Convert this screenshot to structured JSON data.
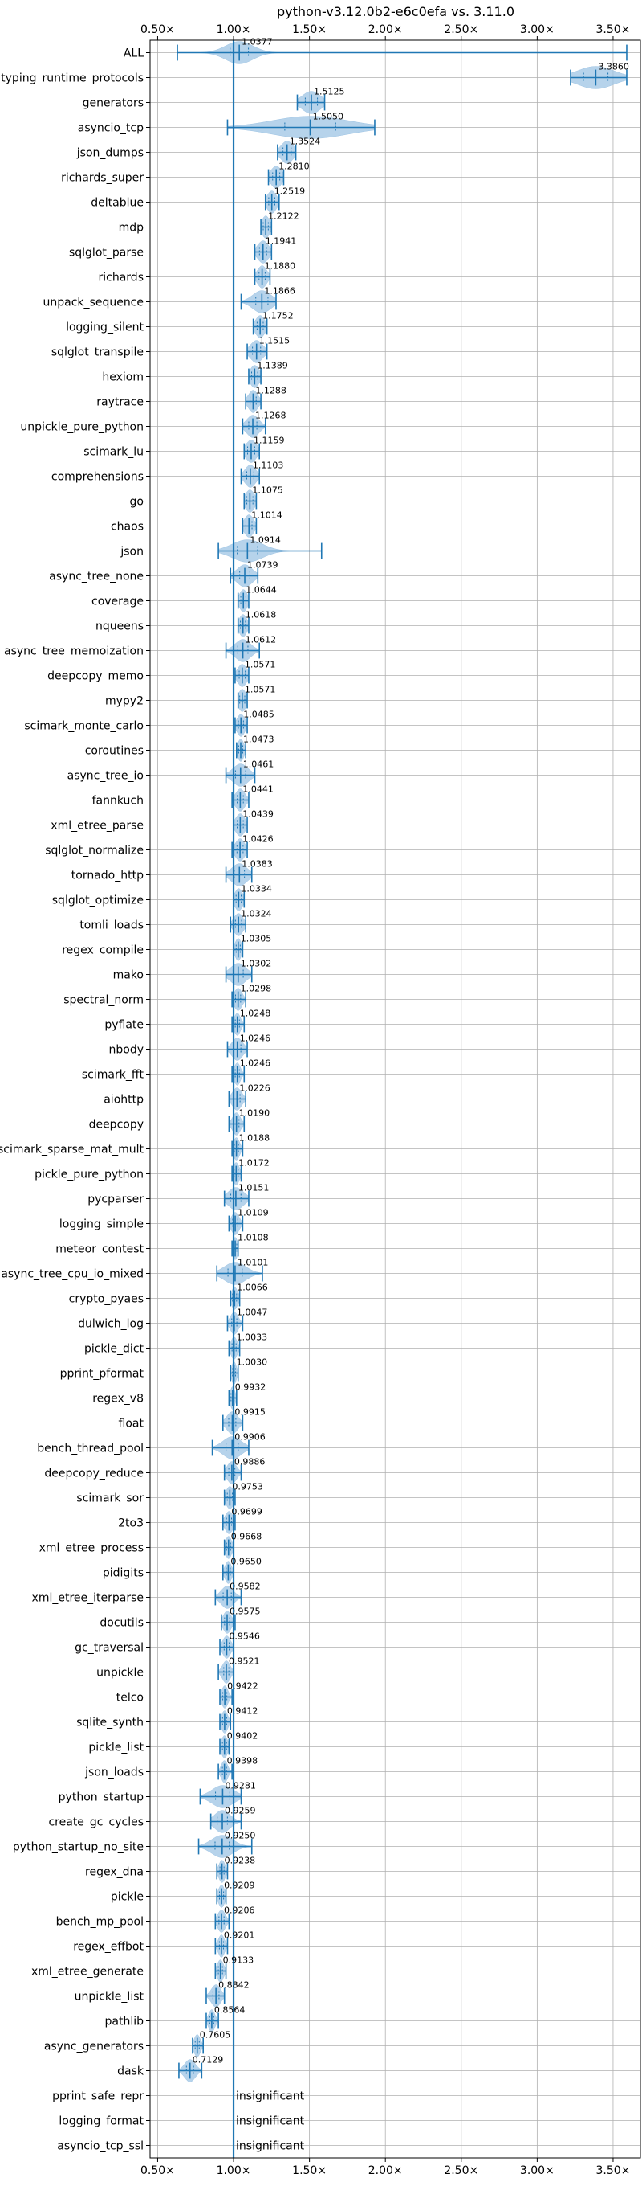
{
  "chart_data": {
    "type": "violin",
    "title": "python-v3.12.0b2-e6c0efa vs. 3.11.0",
    "xlabel": "",
    "ylabel": "",
    "xlim": [
      0.45,
      3.68
    ],
    "xticks": [
      0.5,
      1.0,
      1.5,
      2.0,
      2.5,
      3.0,
      3.5
    ],
    "xtick_labels": [
      "0.50×",
      "1.00×",
      "1.50×",
      "2.00×",
      "2.50×",
      "3.00×",
      "3.50×"
    ],
    "grid": true,
    "reference_line": 1.0,
    "colors": {
      "violin": "#9ec4e4",
      "line": "#1f77b4",
      "grid": "#b0b0b0"
    },
    "benchmarks": [
      {
        "name": "ALL",
        "label": "1.0377",
        "min": 0.63,
        "max": 3.59,
        "spread": 0.09
      },
      {
        "name": "typing_runtime_protocols",
        "label": "3.3860",
        "min": 3.22,
        "max": 3.59,
        "spread": 0.12
      },
      {
        "name": "generators",
        "label": "1.5125",
        "min": 1.42,
        "max": 1.6,
        "spread": 0.06
      },
      {
        "name": "asyncio_tcp",
        "label": "1.5050",
        "min": 0.96,
        "max": 1.93,
        "spread": 0.25
      },
      {
        "name": "json_dumps",
        "label": "1.3524",
        "min": 1.29,
        "max": 1.41,
        "spread": 0.04
      },
      {
        "name": "richards_super",
        "label": "1.2810",
        "min": 1.23,
        "max": 1.33,
        "spread": 0.035
      },
      {
        "name": "deltablue",
        "label": "1.2519",
        "min": 1.21,
        "max": 1.3,
        "spread": 0.03
      },
      {
        "name": "mdp",
        "label": "1.2122",
        "min": 1.18,
        "max": 1.25,
        "spread": 0.025
      },
      {
        "name": "sqlglot_parse",
        "label": "1.1941",
        "min": 1.14,
        "max": 1.25,
        "spread": 0.035
      },
      {
        "name": "richards",
        "label": "1.1880",
        "min": 1.14,
        "max": 1.24,
        "spread": 0.03
      },
      {
        "name": "unpack_sequence",
        "label": "1.1866",
        "min": 1.05,
        "max": 1.28,
        "spread": 0.06
      },
      {
        "name": "logging_silent",
        "label": "1.1752",
        "min": 1.13,
        "max": 1.22,
        "spread": 0.03
      },
      {
        "name": "sqlglot_transpile",
        "label": "1.1515",
        "min": 1.09,
        "max": 1.22,
        "spread": 0.04
      },
      {
        "name": "hexiom",
        "label": "1.1389",
        "min": 1.1,
        "max": 1.18,
        "spread": 0.03
      },
      {
        "name": "raytrace",
        "label": "1.1288",
        "min": 1.08,
        "max": 1.18,
        "spread": 0.03
      },
      {
        "name": "unpickle_pure_python",
        "label": "1.1268",
        "min": 1.06,
        "max": 1.21,
        "spread": 0.04
      },
      {
        "name": "scimark_lu",
        "label": "1.1159",
        "min": 1.07,
        "max": 1.17,
        "spread": 0.035
      },
      {
        "name": "comprehensions",
        "label": "1.1103",
        "min": 1.05,
        "max": 1.17,
        "spread": 0.035
      },
      {
        "name": "go",
        "label": "1.1075",
        "min": 1.07,
        "max": 1.15,
        "spread": 0.03
      },
      {
        "name": "chaos",
        "label": "1.1014",
        "min": 1.06,
        "max": 1.15,
        "spread": 0.03
      },
      {
        "name": "json",
        "label": "1.0914",
        "min": 0.9,
        "max": 1.58,
        "spread": 0.1
      },
      {
        "name": "async_tree_none",
        "label": "1.0739",
        "min": 0.98,
        "max": 1.16,
        "spread": 0.05
      },
      {
        "name": "coverage",
        "label": "1.0644",
        "min": 1.03,
        "max": 1.1,
        "spread": 0.025
      },
      {
        "name": "nqueens",
        "label": "1.0618",
        "min": 1.03,
        "max": 1.1,
        "spread": 0.025
      },
      {
        "name": "async_tree_memoization",
        "label": "1.0612",
        "min": 0.95,
        "max": 1.17,
        "spread": 0.05
      },
      {
        "name": "deepcopy_memo",
        "label": "1.0571",
        "min": 1.01,
        "max": 1.1,
        "spread": 0.03
      },
      {
        "name": "mypy2",
        "label": "1.0571",
        "min": 1.03,
        "max": 1.09,
        "spread": 0.025
      },
      {
        "name": "scimark_monte_carlo",
        "label": "1.0485",
        "min": 1.01,
        "max": 1.09,
        "spread": 0.025
      },
      {
        "name": "coroutines",
        "label": "1.0473",
        "min": 1.02,
        "max": 1.08,
        "spread": 0.02
      },
      {
        "name": "async_tree_io",
        "label": "1.0461",
        "min": 0.95,
        "max": 1.14,
        "spread": 0.05
      },
      {
        "name": "fannkuch",
        "label": "1.0441",
        "min": 0.99,
        "max": 1.1,
        "spread": 0.03
      },
      {
        "name": "xml_etree_parse",
        "label": "1.0439",
        "min": 1.0,
        "max": 1.09,
        "spread": 0.03
      },
      {
        "name": "sqlglot_normalize",
        "label": "1.0426",
        "min": 0.99,
        "max": 1.09,
        "spread": 0.03
      },
      {
        "name": "tornado_http",
        "label": "1.0383",
        "min": 0.95,
        "max": 1.12,
        "spread": 0.05
      },
      {
        "name": "sqlglot_optimize",
        "label": "1.0334",
        "min": 1.0,
        "max": 1.07,
        "spread": 0.025
      },
      {
        "name": "tomli_loads",
        "label": "1.0324",
        "min": 0.98,
        "max": 1.08,
        "spread": 0.03
      },
      {
        "name": "regex_compile",
        "label": "1.0305",
        "min": 1.0,
        "max": 1.06,
        "spread": 0.02
      },
      {
        "name": "mako",
        "label": "1.0302",
        "min": 0.95,
        "max": 1.12,
        "spread": 0.05
      },
      {
        "name": "spectral_norm",
        "label": "1.0298",
        "min": 0.99,
        "max": 1.08,
        "spread": 0.025
      },
      {
        "name": "pyflate",
        "label": "1.0248",
        "min": 0.99,
        "max": 1.07,
        "spread": 0.02
      },
      {
        "name": "nbody",
        "label": "1.0246",
        "min": 0.96,
        "max": 1.09,
        "spread": 0.035
      },
      {
        "name": "scimark_fft",
        "label": "1.0246",
        "min": 0.99,
        "max": 1.07,
        "spread": 0.02
      },
      {
        "name": "aiohttp",
        "label": "1.0226",
        "min": 0.97,
        "max": 1.08,
        "spread": 0.03
      },
      {
        "name": "deepcopy",
        "label": "1.0190",
        "min": 0.97,
        "max": 1.07,
        "spread": 0.025
      },
      {
        "name": "scimark_sparse_mat_mult",
        "label": "1.0188",
        "min": 0.99,
        "max": 1.06,
        "spread": 0.02
      },
      {
        "name": "pickle_pure_python",
        "label": "1.0172",
        "min": 0.99,
        "max": 1.05,
        "spread": 0.02
      },
      {
        "name": "pycparser",
        "label": "1.0151",
        "min": 0.94,
        "max": 1.1,
        "spread": 0.05
      },
      {
        "name": "logging_simple",
        "label": "1.0109",
        "min": 0.97,
        "max": 1.06,
        "spread": 0.025
      },
      {
        "name": "meteor_contest",
        "label": "1.0108",
        "min": 0.99,
        "max": 1.03,
        "spread": 0.015
      },
      {
        "name": "async_tree_cpu_io_mixed",
        "label": "1.0101",
        "min": 0.89,
        "max": 1.19,
        "spread": 0.07
      },
      {
        "name": "crypto_pyaes",
        "label": "1.0066",
        "min": 0.98,
        "max": 1.04,
        "spread": 0.02
      },
      {
        "name": "dulwich_log",
        "label": "1.0047",
        "min": 0.96,
        "max": 1.06,
        "spread": 0.025
      },
      {
        "name": "pickle_dict",
        "label": "1.0033",
        "min": 0.97,
        "max": 1.04,
        "spread": 0.02
      },
      {
        "name": "pprint_pformat",
        "label": "1.0030",
        "min": 0.98,
        "max": 1.03,
        "spread": 0.015
      },
      {
        "name": "regex_v8",
        "label": "0.9932",
        "min": 0.97,
        "max": 1.02,
        "spread": 0.015
      },
      {
        "name": "float",
        "label": "0.9915",
        "min": 0.93,
        "max": 1.06,
        "spread": 0.035
      },
      {
        "name": "bench_thread_pool",
        "label": "0.9906",
        "min": 0.86,
        "max": 1.1,
        "spread": 0.06
      },
      {
        "name": "deepcopy_reduce",
        "label": "0.9886",
        "min": 0.94,
        "max": 1.05,
        "spread": 0.03
      },
      {
        "name": "scimark_sor",
        "label": "0.9753",
        "min": 0.94,
        "max": 1.01,
        "spread": 0.025
      },
      {
        "name": "2to3",
        "label": "0.9699",
        "min": 0.93,
        "max": 1.01,
        "spread": 0.025
      },
      {
        "name": "xml_etree_process",
        "label": "0.9668",
        "min": 0.94,
        "max": 1.0,
        "spread": 0.02
      },
      {
        "name": "pidigits",
        "label": "0.9650",
        "min": 0.93,
        "max": 1.0,
        "spread": 0.02
      },
      {
        "name": "xml_etree_iterparse",
        "label": "0.9582",
        "min": 0.88,
        "max": 1.05,
        "spread": 0.04
      },
      {
        "name": "docutils",
        "label": "0.9575",
        "min": 0.92,
        "max": 1.01,
        "spread": 0.025
      },
      {
        "name": "gc_traversal",
        "label": "0.9546",
        "min": 0.91,
        "max": 1.0,
        "spread": 0.025
      },
      {
        "name": "unpickle",
        "label": "0.9521",
        "min": 0.9,
        "max": 1.0,
        "spread": 0.025
      },
      {
        "name": "telco",
        "label": "0.9422",
        "min": 0.91,
        "max": 0.99,
        "spread": 0.02
      },
      {
        "name": "sqlite_synth",
        "label": "0.9412",
        "min": 0.91,
        "max": 0.98,
        "spread": 0.02
      },
      {
        "name": "pickle_list",
        "label": "0.9402",
        "min": 0.91,
        "max": 0.97,
        "spread": 0.02
      },
      {
        "name": "json_loads",
        "label": "0.9398",
        "min": 0.9,
        "max": 0.99,
        "spread": 0.02
      },
      {
        "name": "python_startup",
        "label": "0.9281",
        "min": 0.78,
        "max": 1.05,
        "spread": 0.07
      },
      {
        "name": "create_gc_cycles",
        "label": "0.9259",
        "min": 0.85,
        "max": 1.05,
        "spread": 0.05
      },
      {
        "name": "python_startup_no_site",
        "label": "0.9250",
        "min": 0.77,
        "max": 1.12,
        "spread": 0.07
      },
      {
        "name": "regex_dna",
        "label": "0.9238",
        "min": 0.89,
        "max": 0.96,
        "spread": 0.02
      },
      {
        "name": "pickle",
        "label": "0.9209",
        "min": 0.89,
        "max": 0.95,
        "spread": 0.02
      },
      {
        "name": "bench_mp_pool",
        "label": "0.9206",
        "min": 0.88,
        "max": 0.97,
        "spread": 0.025
      },
      {
        "name": "regex_effbot",
        "label": "0.9201",
        "min": 0.88,
        "max": 0.96,
        "spread": 0.02
      },
      {
        "name": "xml_etree_generate",
        "label": "0.9133",
        "min": 0.88,
        "max": 0.95,
        "spread": 0.02
      },
      {
        "name": "unpickle_list",
        "label": "0.8842",
        "min": 0.82,
        "max": 0.94,
        "spread": 0.03
      },
      {
        "name": "pathlib",
        "label": "0.8564",
        "min": 0.82,
        "max": 0.9,
        "spread": 0.02
      },
      {
        "name": "async_generators",
        "label": "0.7605",
        "min": 0.73,
        "max": 0.8,
        "spread": 0.02
      },
      {
        "name": "dask",
        "label": "0.7129",
        "min": 0.64,
        "max": 0.79,
        "spread": 0.035
      },
      {
        "name": "pprint_safe_repr",
        "label": "insignificant",
        "insignificant": true
      },
      {
        "name": "logging_format",
        "label": "insignificant",
        "insignificant": true
      },
      {
        "name": "asyncio_tcp_ssl",
        "label": "insignificant",
        "insignificant": true
      }
    ]
  }
}
